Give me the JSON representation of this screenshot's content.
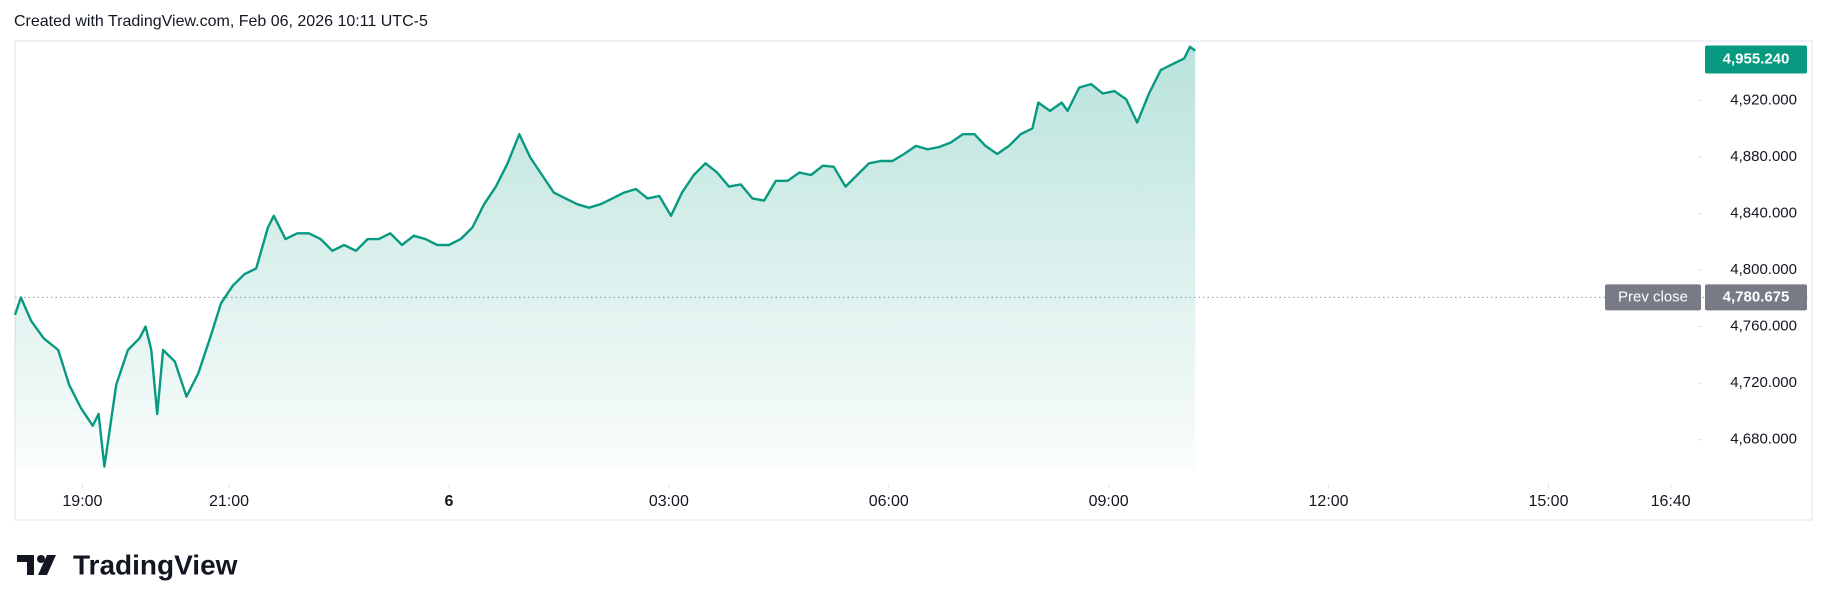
{
  "chart_data": {
    "type": "area",
    "title": "Created with TradingView.com, Feb 06, 2026 10:11 UTC-5",
    "brand": "TradingView",
    "color": "#089981",
    "grid": false,
    "x": [
      18.08,
      18.16,
      18.3,
      18.47,
      18.67,
      18.82,
      18.98,
      19.14,
      19.22,
      19.3,
      19.46,
      19.62,
      19.78,
      19.86,
      19.94,
      20.02,
      20.1,
      20.26,
      20.42,
      20.58,
      20.74,
      20.89,
      21.05,
      21.21,
      21.37,
      21.53,
      21.61,
      21.77,
      21.93,
      22.09,
      22.25,
      22.41,
      22.57,
      22.73,
      22.89,
      23.04,
      23.2,
      23.36,
      23.52,
      23.68,
      23.84,
      24.0,
      24.16,
      24.32,
      24.48,
      24.64,
      24.8,
      24.96,
      25.11,
      25.27,
      25.43,
      25.59,
      25.75,
      25.91,
      26.07,
      26.23,
      26.39,
      26.55,
      26.71,
      26.87,
      27.03,
      27.18,
      27.34,
      27.5,
      27.66,
      27.82,
      27.98,
      28.14,
      28.3,
      28.46,
      28.62,
      28.78,
      28.94,
      29.1,
      29.25,
      29.41,
      29.57,
      29.73,
      29.89,
      30.05,
      30.21,
      30.37,
      30.53,
      30.69,
      30.85,
      31.01,
      31.17,
      31.32,
      31.48,
      31.64,
      31.8,
      31.96,
      32.04,
      32.2,
      32.36,
      32.44,
      32.6,
      32.76,
      32.92,
      33.08,
      33.24,
      33.39,
      33.55,
      33.71,
      33.87,
      34.03,
      34.11,
      34.18
    ],
    "values": [
      4768.3,
      4780.6,
      4764.1,
      4751.8,
      4743.5,
      4718.8,
      4702.3,
      4689.9,
      4698.2,
      4661.0,
      4718.8,
      4743.5,
      4751.8,
      4760.0,
      4743.5,
      4698.2,
      4743.5,
      4735.3,
      4710.5,
      4727.0,
      4751.8,
      4776.5,
      4788.9,
      4797.1,
      4801.2,
      4830.1,
      4838.4,
      4821.9,
      4826.0,
      4826.0,
      4821.9,
      4813.6,
      4817.7,
      4813.6,
      4821.9,
      4821.9,
      4826.0,
      4817.7,
      4824.3,
      4821.9,
      4817.7,
      4817.7,
      4821.9,
      4830.1,
      4846.6,
      4859.0,
      4875.5,
      4896.1,
      4879.6,
      4867.2,
      4854.8,
      4850.7,
      4846.6,
      4844.1,
      4846.6,
      4850.7,
      4854.8,
      4857.3,
      4850.7,
      4852.4,
      4838.4,
      4854.8,
      4867.2,
      4875.5,
      4868.9,
      4859.0,
      4860.6,
      4850.7,
      4849.1,
      4863.1,
      4863.1,
      4868.9,
      4867.2,
      4873.8,
      4873.0,
      4859.0,
      4867.2,
      4875.5,
      4877.1,
      4877.1,
      4882.1,
      4887.8,
      4885.4,
      4887.0,
      4890.3,
      4896.1,
      4896.1,
      4887.8,
      4882.1,
      4887.8,
      4896.1,
      4900.2,
      4918.4,
      4912.6,
      4918.4,
      4912.6,
      4929.1,
      4931.5,
      4924.9,
      4926.6,
      4920.8,
      4904.3,
      4924.9,
      4941.4,
      4945.6,
      4949.7,
      4957.9,
      4955.24
    ],
    "last_label": "4,955.240",
    "prev_close": {
      "value": 4780.675,
      "label": "4,780.675"
    },
    "prev_close_text": "Prev close",
    "xlim": [
      18.08,
      41.04
    ],
    "xticks": [
      {
        "value": 19,
        "label": "19:00"
      },
      {
        "value": 21,
        "label": "21:00"
      },
      {
        "value": 24,
        "label": "6"
      },
      {
        "value": 27,
        "label": "03:00"
      },
      {
        "value": 30,
        "label": "06:00"
      },
      {
        "value": 33,
        "label": "09:00"
      },
      {
        "value": 36,
        "label": "12:00"
      },
      {
        "value": 39,
        "label": "15:00"
      },
      {
        "value": 40.667,
        "label": "16:40"
      }
    ],
    "ylim": [
      4658.6,
      4962
    ],
    "yticks": [
      {
        "value": 4680,
        "label": "4,680.000"
      },
      {
        "value": 4720,
        "label": "4,720.000"
      },
      {
        "value": 4760,
        "label": "4,760.000"
      },
      {
        "value": 4800,
        "label": "4,800.000"
      },
      {
        "value": 4840,
        "label": "4,840.000"
      },
      {
        "value": 4880,
        "label": "4,880.000"
      },
      {
        "value": 4920,
        "label": "4,920.000"
      }
    ]
  }
}
